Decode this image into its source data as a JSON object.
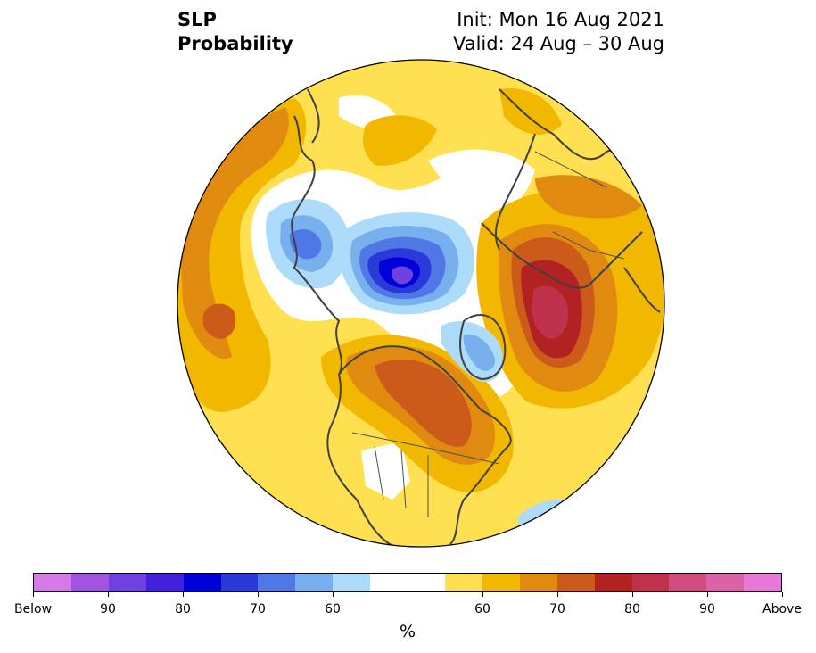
{
  "title": {
    "line1": "SLP",
    "line2": "Probability"
  },
  "init": "Init: Mon 16 Aug 2021",
  "valid": "Valid: 24 Aug – 30 Aug",
  "colorbar": {
    "colors": [
      "#d67ae6",
      "#a254e0",
      "#7040e0",
      "#4320dc",
      "#0000d8",
      "#2a3ad8",
      "#4f78e6",
      "#78b0ee",
      "#acdcfa",
      "#ffffff",
      "#ffffff",
      "#ffe050",
      "#f2b800",
      "#e08a10",
      "#cc5a1a",
      "#b22222",
      "#c0324c",
      "#d04e7e",
      "#dc62a8",
      "#e878d8"
    ],
    "tick_labels": [
      "Below",
      "90",
      "80",
      "70",
      "60",
      "60",
      "70",
      "80",
      "90",
      "Above"
    ],
    "unit": "%"
  }
}
